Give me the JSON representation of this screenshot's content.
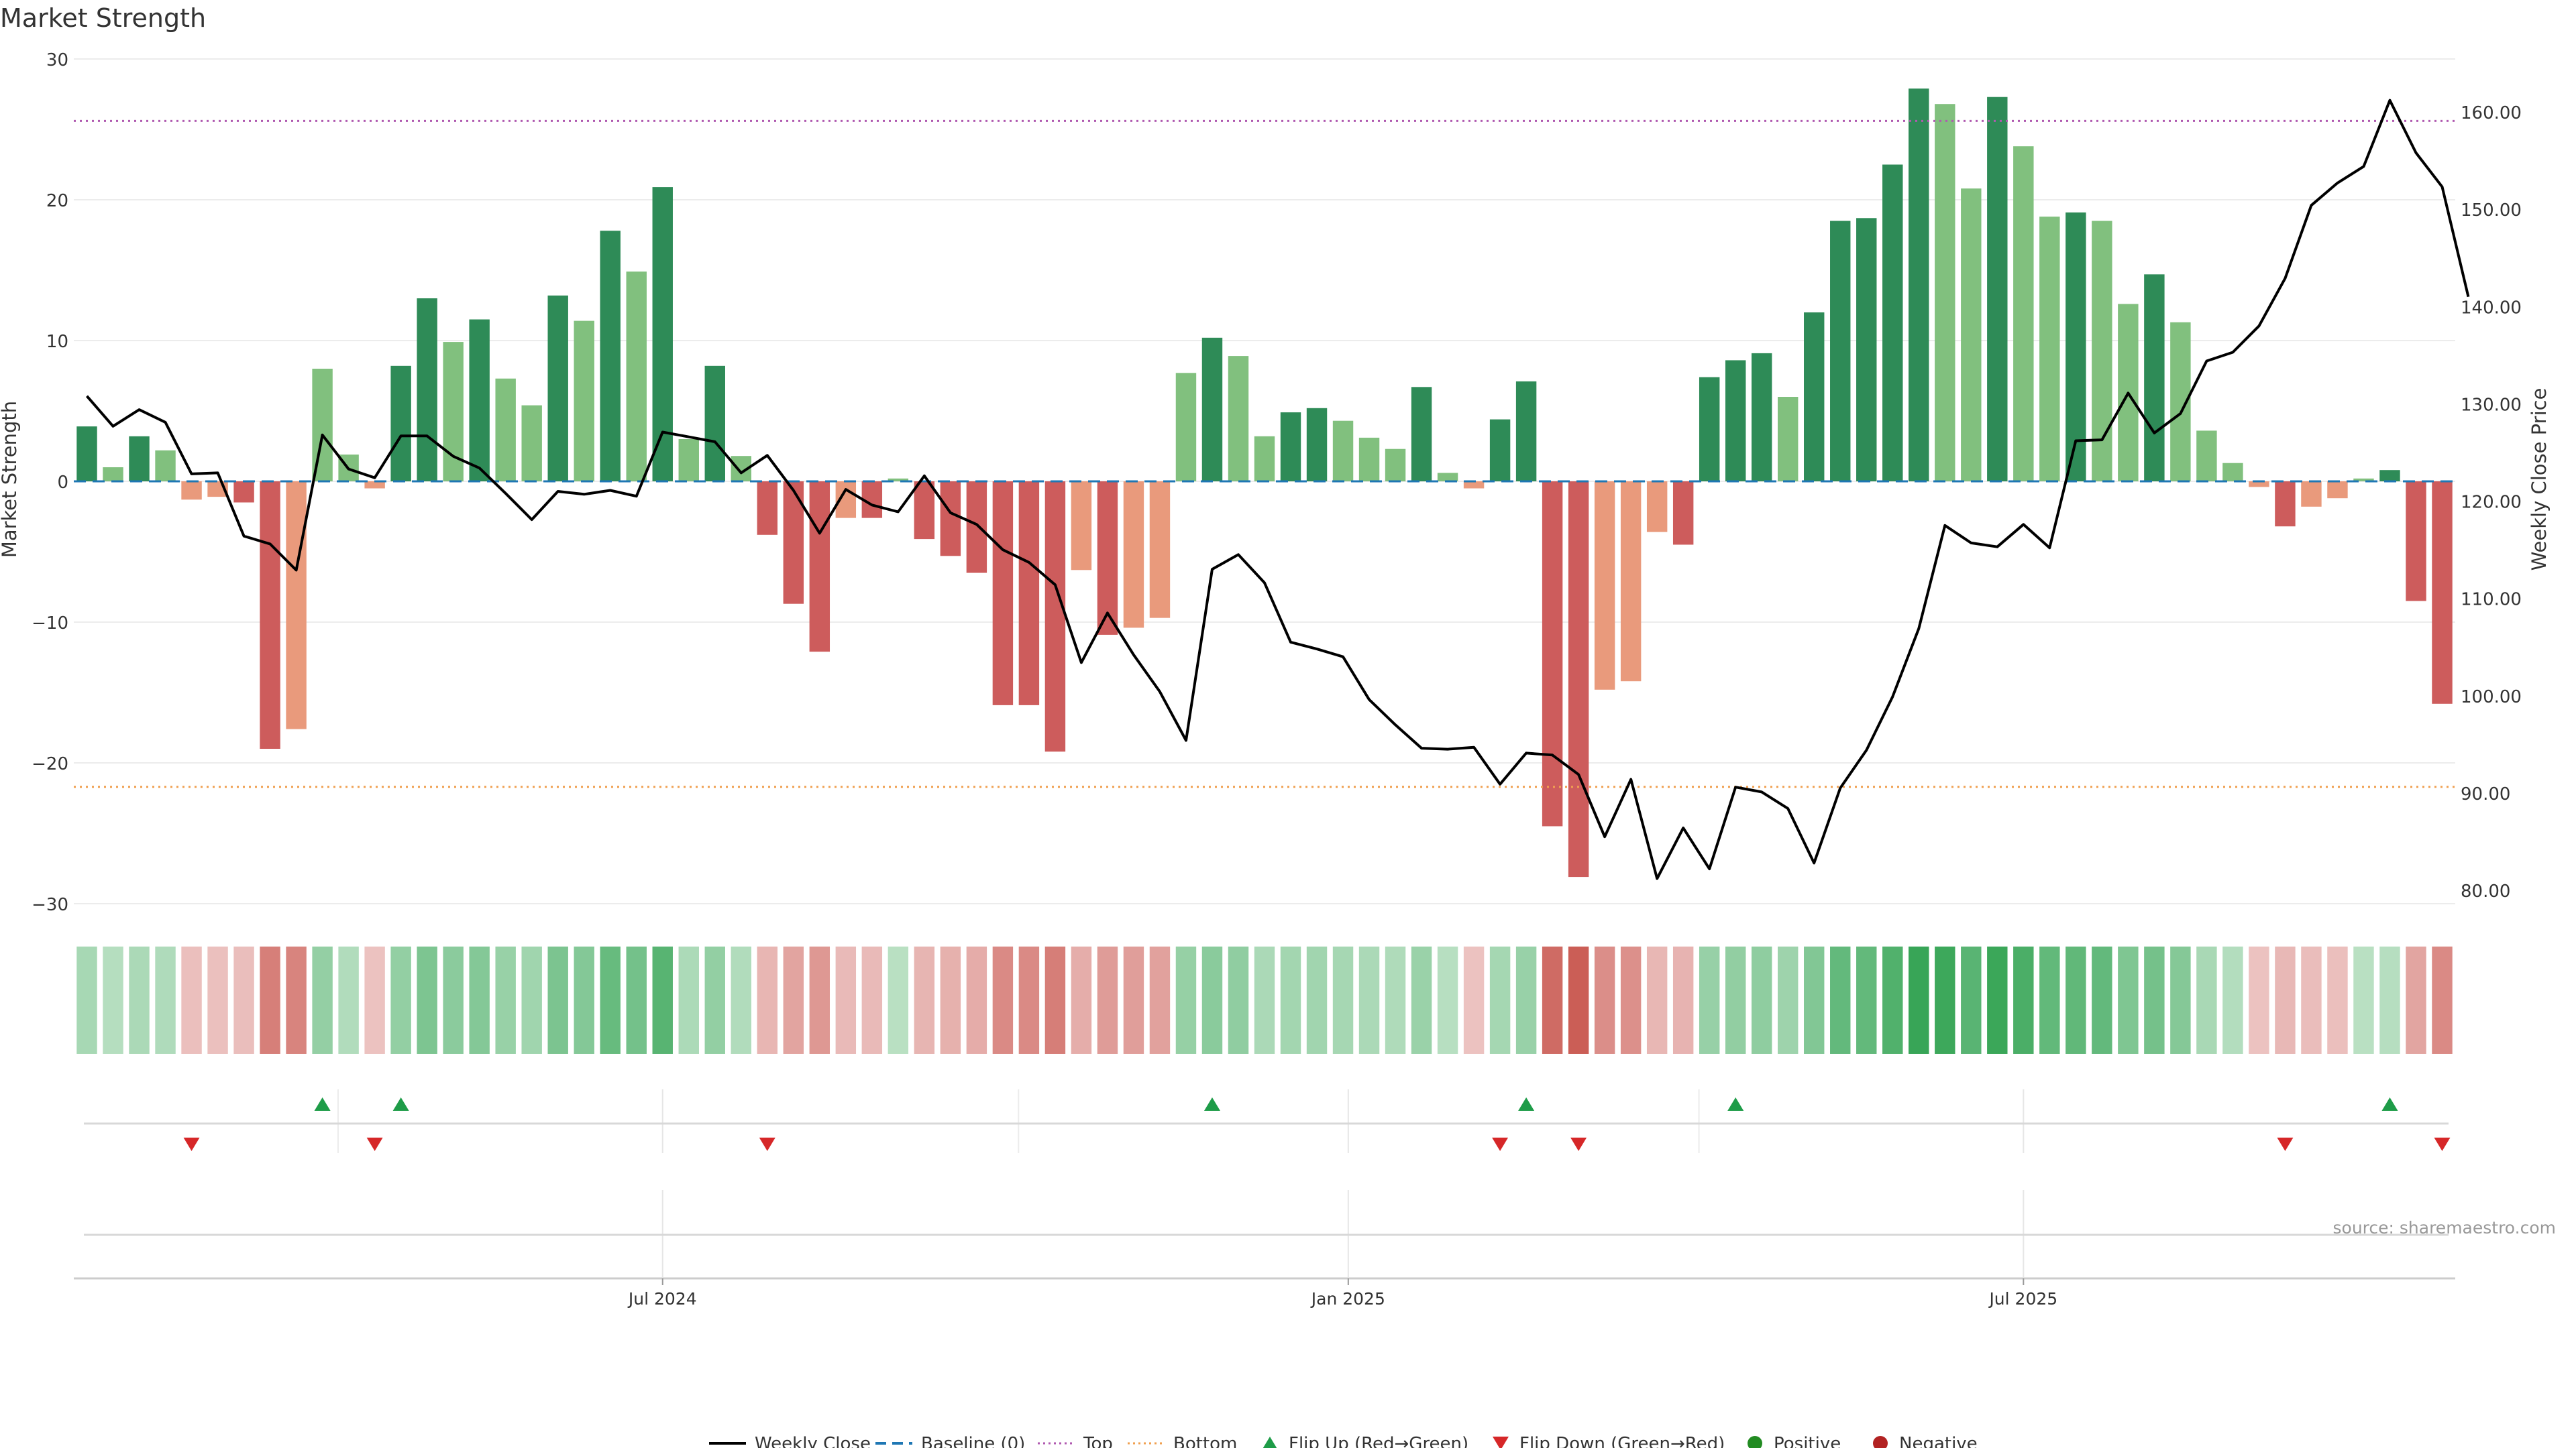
{
  "chart_data": {
    "type": "bar",
    "title": "Market Strength",
    "ylabel": "Market Strength",
    "y2label": "Weekly Close Price",
    "source": "source: sharemaestro.com",
    "ylim": [
      -30,
      30
    ],
    "y2lim": [
      78,
      165
    ],
    "yticks": [
      "30",
      "20",
      "10",
      "0",
      "−10",
      "−20",
      "−30"
    ],
    "yticks_values": [
      30,
      20,
      10,
      0,
      -10,
      -20,
      -30
    ],
    "y2ticks": [
      "160.00",
      "150.00",
      "140.00",
      "130.00",
      "120.00",
      "110.00",
      "100.00",
      "90.00",
      "80.00"
    ],
    "y2ticks_values": [
      160,
      150,
      140,
      130,
      120,
      110,
      100,
      90,
      80
    ],
    "top_line": 25.6,
    "bottom_line": -21.7,
    "baseline": 0,
    "x_ticks": [
      {
        "label": "Jul 2024",
        "index": 22
      },
      {
        "label": "Jan 2025",
        "index": 48.2
      },
      {
        "label": "Jul 2025",
        "index": 74
      }
    ],
    "strength": [
      3.9,
      1.0,
      3.2,
      2.2,
      -1.3,
      -1.1,
      -1.5,
      -19.0,
      -17.6,
      8.0,
      1.9,
      -0.5,
      8.2,
      13.0,
      9.9,
      11.5,
      7.3,
      5.4,
      13.2,
      11.4,
      17.8,
      14.9,
      20.9,
      3.0,
      8.2,
      1.8,
      -3.8,
      -8.7,
      -12.1,
      -2.6,
      -2.6,
      0.2,
      -4.1,
      -5.3,
      -6.5,
      -15.9,
      -15.9,
      -19.2,
      -6.3,
      -10.9,
      -10.4,
      -9.7,
      7.7,
      10.2,
      8.9,
      3.2,
      4.9,
      5.2,
      4.3,
      3.1,
      2.3,
      6.7,
      0.6,
      -0.5,
      4.4,
      7.1,
      -24.5,
      -28.1,
      -14.8,
      -14.2,
      -3.6,
      -4.5,
      7.4,
      8.6,
      9.1,
      6.0,
      12.0,
      18.5,
      18.7,
      22.5,
      27.9,
      26.8,
      20.8,
      27.3,
      23.8,
      18.8,
      19.1,
      18.5,
      12.6,
      14.7,
      11.3,
      3.6,
      1.3,
      -0.4,
      -3.2,
      -1.8,
      -1.2,
      0.2,
      0.8,
      -8.5,
      -15.8
    ],
    "weekly_close": [
      130.8,
      127.7,
      129.4,
      128.1,
      122.8,
      122.9,
      116.4,
      115.6,
      112.9,
      126.8,
      123.3,
      122.4,
      126.7,
      126.7,
      124.6,
      123.4,
      120.8,
      118.1,
      121.0,
      120.7,
      121.1,
      120.5,
      127.1,
      126.6,
      126.1,
      122.9,
      124.7,
      121.1,
      116.7,
      121.2,
      119.6,
      118.9,
      122.6,
      118.8,
      117.6,
      115.0,
      113.7,
      111.4,
      103.4,
      108.5,
      104.2,
      100.4,
      95.4,
      113.0,
      114.5,
      111.6,
      105.5,
      104.8,
      104.0,
      99.6,
      97.0,
      94.6,
      94.5,
      94.7,
      90.9,
      94.1,
      93.9,
      91.9,
      85.5,
      91.4,
      81.2,
      86.4,
      82.2,
      90.6,
      90.1,
      88.4,
      82.8,
      90.5,
      94.4,
      99.9,
      106.9,
      117.5,
      115.7,
      115.3,
      117.6,
      115.2,
      126.2,
      126.3,
      131.1,
      127.0,
      129.0,
      134.4,
      135.3,
      138.0,
      142.9,
      150.4,
      152.7,
      154.4,
      161.2,
      155.8,
      152.3,
      141.0
    ],
    "heat_legend": [
      "Positive",
      "Negative"
    ],
    "flip_up_index": [
      9,
      12,
      43,
      55,
      63,
      88
    ],
    "flip_down_index": [
      4,
      11,
      26,
      54,
      57,
      84,
      90
    ],
    "legend": [
      {
        "label": "Weekly Close",
        "kind": "line",
        "color": "#000000"
      },
      {
        "label": "Baseline (0)",
        "kind": "dash",
        "color": "#1f77b4"
      },
      {
        "label": "Top",
        "kind": "dot",
        "color": "#b05ab0"
      },
      {
        "label": "Bottom",
        "kind": "dot",
        "color": "#f0a050"
      },
      {
        "label": "Flip Up (Red→Green)",
        "kind": "tri-up",
        "color": "#1e9c48"
      },
      {
        "label": "Flip Down (Green→Red)",
        "kind": "tri-down",
        "color": "#d62728"
      },
      {
        "label": "Positive",
        "kind": "circle",
        "color": "#228b22"
      },
      {
        "label": "Negative",
        "kind": "circle",
        "color": "#b22222"
      }
    ],
    "colors": {
      "strong_pos": "#2e8b57",
      "weak_pos": "#81c07e",
      "strong_neg": "#cd5c5c",
      "weak_neg": "#e99a7c",
      "top": "#b05ab0",
      "bottom": "#f0a050",
      "baseline": "#1f77b4",
      "flip_up": "#1e9c48",
      "flip_down": "#d62728"
    }
  }
}
